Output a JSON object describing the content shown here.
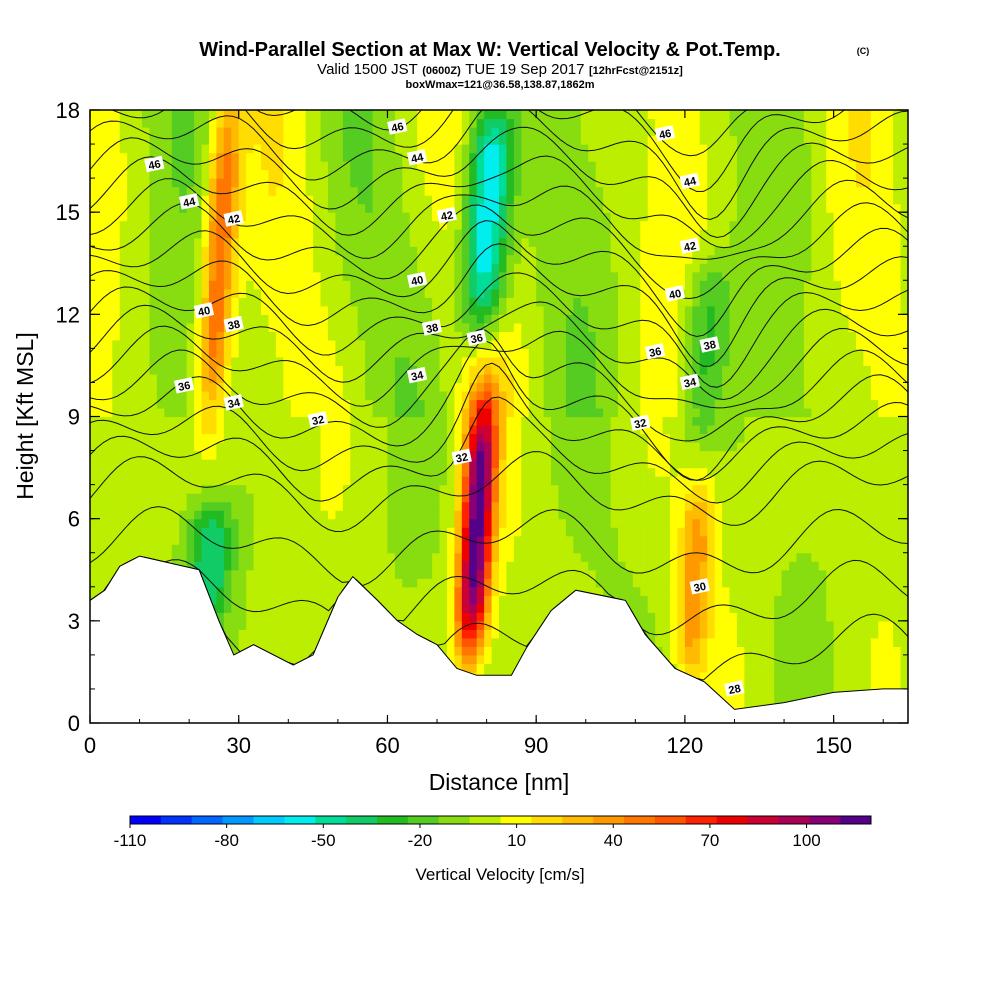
{
  "chart_data": {
    "type": "heatmap",
    "title": "Wind-Parallel Section at Max W: Vertical Velocity & Pot.Temp.",
    "title_copyright": "(C)",
    "subtitle": {
      "valid_prefix": "Valid 1500 JST",
      "utc": "(0600Z)",
      "date": "TUE 19 Sep 2017",
      "forecast": "[12hrFcst@2151z]"
    },
    "subtitle2": "boxWmax=121@36.58,138.87,1862m",
    "xlabel": "Distance [nm]",
    "ylabel": "Height [Kft MSL]",
    "xlim": [
      0,
      165
    ],
    "ylim": [
      0,
      18
    ],
    "xticks": [
      "0",
      "30",
      "60",
      "90",
      "120",
      "150"
    ],
    "yticks": [
      "0",
      "3",
      "6",
      "9",
      "12",
      "15",
      "18"
    ],
    "colorbar": {
      "title": "Vertical Velocity [cm/s]",
      "levels": [
        -110,
        -100,
        -90,
        -80,
        -70,
        -60,
        -50,
        -40,
        -30,
        -20,
        -10,
        0,
        10,
        20,
        30,
        40,
        50,
        60,
        70,
        80,
        90,
        100,
        110,
        120
      ],
      "tick_labels": [
        "-110",
        "-80",
        "-50",
        "-20",
        "10",
        "40",
        "70",
        "100"
      ],
      "colors": [
        "#0000ff",
        "#0033ff",
        "#0066ff",
        "#0099ff",
        "#00ccff",
        "#00eeee",
        "#00dd99",
        "#11cc66",
        "#22bb22",
        "#55cc22",
        "#88dd11",
        "#bbee00",
        "#ffff00",
        "#ffdd00",
        "#ffbb00",
        "#ff9900",
        "#ff7700",
        "#ff5500",
        "#ff2200",
        "#ee0000",
        "#cc0033",
        "#aa0055",
        "#880077",
        "#550088"
      ]
    },
    "contour_labels": [
      "46",
      "44",
      "42",
      "40",
      "38",
      "36",
      "34",
      "32",
      "30",
      "28"
    ],
    "theta_contours": {
      "levels": [
        28,
        29,
        30,
        31,
        32,
        33,
        34,
        35,
        36,
        37,
        38,
        39,
        40,
        41,
        42,
        43,
        44,
        45,
        46,
        47
      ],
      "label_placements": [
        {
          "label": "46",
          "x": 13,
          "y": 16.4
        },
        {
          "label": "44",
          "x": 20,
          "y": 15.3
        },
        {
          "label": "42",
          "x": 29,
          "y": 14.8
        },
        {
          "label": "40",
          "x": 23,
          "y": 12.1
        },
        {
          "label": "38",
          "x": 29,
          "y": 11.7
        },
        {
          "label": "36",
          "x": 19,
          "y": 9.9
        },
        {
          "label": "34",
          "x": 29,
          "y": 9.4
        },
        {
          "label": "32",
          "x": 46,
          "y": 8.9
        },
        {
          "label": "46",
          "x": 62,
          "y": 17.5
        },
        {
          "label": "44",
          "x": 66,
          "y": 16.6
        },
        {
          "label": "42",
          "x": 72,
          "y": 14.9
        },
        {
          "label": "40",
          "x": 66,
          "y": 13.0
        },
        {
          "label": "38",
          "x": 69,
          "y": 11.6
        },
        {
          "label": "36",
          "x": 78,
          "y": 11.3
        },
        {
          "label": "34",
          "x": 66,
          "y": 10.2
        },
        {
          "label": "32",
          "x": 75,
          "y": 7.8
        },
        {
          "label": "46",
          "x": 116,
          "y": 17.3
        },
        {
          "label": "44",
          "x": 121,
          "y": 15.9
        },
        {
          "label": "42",
          "x": 121,
          "y": 14.0
        },
        {
          "label": "40",
          "x": 118,
          "y": 12.6
        },
        {
          "label": "38",
          "x": 125,
          "y": 11.1
        },
        {
          "label": "36",
          "x": 114,
          "y": 10.9
        },
        {
          "label": "34",
          "x": 121,
          "y": 10.0
        },
        {
          "label": "32",
          "x": 111,
          "y": 8.8
        },
        {
          "label": "30",
          "x": 123,
          "y": 4.0
        },
        {
          "label": "28",
          "x": 130,
          "y": 1.0
        }
      ]
    },
    "terrain_kft": [
      [
        0,
        3.6
      ],
      [
        3,
        3.9
      ],
      [
        6,
        4.6
      ],
      [
        10,
        4.9
      ],
      [
        22,
        4.5
      ],
      [
        26,
        3.0
      ],
      [
        29,
        2.0
      ],
      [
        33,
        2.3
      ],
      [
        41,
        1.7
      ],
      [
        45,
        2.0
      ],
      [
        50,
        3.7
      ],
      [
        53,
        4.3
      ],
      [
        58,
        3.6
      ],
      [
        62,
        3.0
      ],
      [
        66,
        2.6
      ],
      [
        70,
        2.3
      ],
      [
        74,
        1.6
      ],
      [
        78,
        1.4
      ],
      [
        85,
        1.4
      ],
      [
        88,
        2.2
      ],
      [
        93,
        3.3
      ],
      [
        98,
        3.9
      ],
      [
        108,
        3.6
      ],
      [
        112,
        2.6
      ],
      [
        118,
        1.6
      ],
      [
        124,
        1.2
      ],
      [
        130,
        0.4
      ],
      [
        140,
        0.6
      ],
      [
        150,
        0.9
      ],
      [
        160,
        1.0
      ],
      [
        165,
        1.0
      ]
    ],
    "vertical_velocity_field": {
      "background_cm_s": 0,
      "features": [
        {
          "kind": "updraft",
          "x": 78,
          "z_bottom": 2.0,
          "z_top": 9.5,
          "peak_cm_s": 120
        },
        {
          "kind": "downdraft",
          "x": 80,
          "z_bottom": 11.5,
          "z_top": 18,
          "peak_cm_s": -70
        },
        {
          "kind": "updraft",
          "x": 26,
          "z_bottom": 9.0,
          "z_top": 18,
          "peak_cm_s": 60
        },
        {
          "kind": "downdraft",
          "x": 24,
          "z_bottom": 3.0,
          "z_top": 6.5,
          "peak_cm_s": -40
        },
        {
          "kind": "updraft",
          "x": 122,
          "z_bottom": 1.5,
          "z_top": 7.0,
          "peak_cm_s": 40
        },
        {
          "kind": "downdraft",
          "x": 124,
          "z_bottom": 8.5,
          "z_top": 13.5,
          "peak_cm_s": -30
        }
      ]
    }
  }
}
